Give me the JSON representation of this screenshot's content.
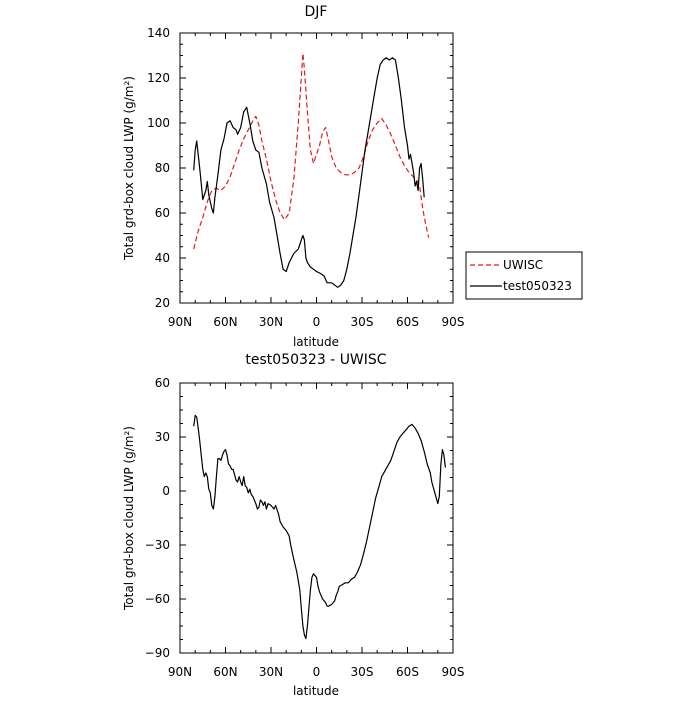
{
  "chart_data": [
    {
      "type": "line",
      "title": "DJF",
      "xlabel": "latitude",
      "ylabel": "Total grd-box cloud LWP (g/m²)",
      "xlim": [
        90,
        -90
      ],
      "ylim": [
        20,
        140
      ],
      "xticks": [
        {
          "value": 90,
          "label": "90N"
        },
        {
          "value": 60,
          "label": "60N"
        },
        {
          "value": 30,
          "label": "30N"
        },
        {
          "value": 0,
          "label": "0"
        },
        {
          "value": -30,
          "label": "30S"
        },
        {
          "value": -60,
          "label": "60S"
        },
        {
          "value": -90,
          "label": "90S"
        }
      ],
      "yticks": [
        20,
        40,
        60,
        80,
        100,
        120,
        140
      ],
      "legend_position": "right",
      "series": [
        {
          "name": "UWISC",
          "color": "#e41a1c",
          "dash": true,
          "points": [
            [
              81,
              44
            ],
            [
              78,
              52
            ],
            [
              75,
              58
            ],
            [
              72,
              65
            ],
            [
              69,
              70
            ],
            [
              66,
              71
            ],
            [
              63,
              70
            ],
            [
              60,
              72
            ],
            [
              57,
              76
            ],
            [
              54,
              82
            ],
            [
              51,
              88
            ],
            [
              48,
              93
            ],
            [
              45,
              97
            ],
            [
              42,
              101
            ],
            [
              40,
              103
            ],
            [
              38,
              99
            ],
            [
              36,
              92
            ],
            [
              33,
              84
            ],
            [
              30,
              74
            ],
            [
              27,
              66
            ],
            [
              24,
              60
            ],
            [
              21,
              57
            ],
            [
              18,
              60
            ],
            [
              15,
              75
            ],
            [
              12,
              100
            ],
            [
              10,
              120
            ],
            [
              9,
              131
            ],
            [
              8,
              124
            ],
            [
              6,
              105
            ],
            [
              4,
              88
            ],
            [
              2,
              82
            ],
            [
              0,
              86
            ],
            [
              -2,
              90
            ],
            [
              -4,
              96
            ],
            [
              -6,
              98
            ],
            [
              -8,
              92
            ],
            [
              -10,
              85
            ],
            [
              -13,
              80
            ],
            [
              -16,
              78
            ],
            [
              -19,
              77
            ],
            [
              -22,
              77
            ],
            [
              -25,
              78
            ],
            [
              -28,
              80
            ],
            [
              -31,
              85
            ],
            [
              -34,
              92
            ],
            [
              -37,
              97
            ],
            [
              -40,
              100
            ],
            [
              -43,
              102
            ],
            [
              -46,
              99
            ],
            [
              -49,
              95
            ],
            [
              -52,
              90
            ],
            [
              -55,
              85
            ],
            [
              -58,
              81
            ],
            [
              -61,
              78
            ],
            [
              -64,
              76
            ],
            [
              -66,
              75
            ],
            [
              -68,
              72
            ],
            [
              -70,
              62
            ],
            [
              -72,
              55
            ],
            [
              -74,
              49
            ]
          ]
        },
        {
          "name": "test050323",
          "color": "#000000",
          "dash": false,
          "points": [
            [
              81,
              79
            ],
            [
              80,
              88
            ],
            [
              79,
              92
            ],
            [
              77,
              80
            ],
            [
              75,
              66
            ],
            [
              73,
              70
            ],
            [
              72,
              74
            ],
            [
              71,
              68
            ],
            [
              69,
              62
            ],
            [
              68,
              60
            ],
            [
              67,
              67
            ],
            [
              65,
              77
            ],
            [
              63,
              88
            ],
            [
              61,
              93
            ],
            [
              59,
              100
            ],
            [
              57,
              101
            ],
            [
              55,
              98
            ],
            [
              53,
              97
            ],
            [
              52,
              95
            ],
            [
              50,
              98
            ],
            [
              48,
              105
            ],
            [
              46,
              107
            ],
            [
              44,
              100
            ],
            [
              42,
              92
            ],
            [
              40,
              88
            ],
            [
              38,
              87
            ],
            [
              36,
              80
            ],
            [
              33,
              73
            ],
            [
              31,
              65
            ],
            [
              28,
              58
            ],
            [
              26,
              50
            ],
            [
              24,
              42
            ],
            [
              22,
              35
            ],
            [
              20,
              34
            ],
            [
              18,
              38
            ],
            [
              15,
              42
            ],
            [
              12,
              44
            ],
            [
              10,
              48
            ],
            [
              9,
              50
            ],
            [
              8,
              48
            ],
            [
              7,
              40
            ],
            [
              6,
              38
            ],
            [
              4,
              36
            ],
            [
              2,
              35
            ],
            [
              0,
              34
            ],
            [
              -3,
              33
            ],
            [
              -5,
              32
            ],
            [
              -7,
              29
            ],
            [
              -10,
              29
            ],
            [
              -12,
              28
            ],
            [
              -14,
              27
            ],
            [
              -16,
              28
            ],
            [
              -18,
              30
            ],
            [
              -20,
              35
            ],
            [
              -22,
              42
            ],
            [
              -24,
              50
            ],
            [
              -26,
              58
            ],
            [
              -28,
              68
            ],
            [
              -30,
              78
            ],
            [
              -32,
              88
            ],
            [
              -34,
              96
            ],
            [
              -36,
              104
            ],
            [
              -38,
              112
            ],
            [
              -40,
              120
            ],
            [
              -42,
              126
            ],
            [
              -44,
              128
            ],
            [
              -46,
              129
            ],
            [
              -48,
              128
            ],
            [
              -50,
              129
            ],
            [
              -52,
              128
            ],
            [
              -54,
              120
            ],
            [
              -56,
              110
            ],
            [
              -58,
              98
            ],
            [
              -60,
              90
            ],
            [
              -61,
              84
            ],
            [
              -62,
              86
            ],
            [
              -64,
              78
            ],
            [
              -65,
              72
            ],
            [
              -66,
              74
            ],
            [
              -67,
              70
            ],
            [
              -68,
              80
            ],
            [
              -69,
              82
            ],
            [
              -70,
              75
            ],
            [
              -71,
              67
            ]
          ]
        }
      ]
    },
    {
      "type": "line",
      "title": "test050323 - UWISC",
      "xlabel": "latitude",
      "ylabel": "Total grd-box cloud LWP (g/m²)",
      "xlim": [
        90,
        -90
      ],
      "ylim": [
        -90,
        60
      ],
      "xticks": [
        {
          "value": 90,
          "label": "90N"
        },
        {
          "value": 60,
          "label": "60N"
        },
        {
          "value": 30,
          "label": "30N"
        },
        {
          "value": 0,
          "label": "0"
        },
        {
          "value": -30,
          "label": "30S"
        },
        {
          "value": -60,
          "label": "60S"
        },
        {
          "value": -90,
          "label": "90S"
        }
      ],
      "yticks": [
        -90,
        -60,
        -30,
        0,
        30,
        60
      ],
      "series": [
        {
          "color": "#000000",
          "dash": false,
          "points": [
            [
              81,
              36
            ],
            [
              80,
              42
            ],
            [
              79,
              41
            ],
            [
              78,
              35
            ],
            [
              77,
              28
            ],
            [
              76,
              20
            ],
            [
              75,
              12
            ],
            [
              74,
              8
            ],
            [
              73,
              10
            ],
            [
              72,
              8
            ],
            [
              71,
              1
            ],
            [
              70,
              -1
            ],
            [
              69,
              -8
            ],
            [
              68,
              -10
            ],
            [
              67,
              -3
            ],
            [
              66,
              8
            ],
            [
              65,
              18
            ],
            [
              64,
              18
            ],
            [
              63,
              17
            ],
            [
              62,
              20
            ],
            [
              61,
              22
            ],
            [
              60,
              23
            ],
            [
              59,
              20
            ],
            [
              58,
              15
            ],
            [
              57,
              14
            ],
            [
              56,
              12
            ],
            [
              55,
              12
            ],
            [
              54,
              9
            ],
            [
              53,
              6
            ],
            [
              52,
              5
            ],
            [
              51,
              8
            ],
            [
              50,
              5
            ],
            [
              49,
              3
            ],
            [
              48,
              8
            ],
            [
              47,
              3
            ],
            [
              46,
              2
            ],
            [
              45,
              -1
            ],
            [
              44,
              1
            ],
            [
              43,
              -2
            ],
            [
              42,
              -3
            ],
            [
              40,
              -7
            ],
            [
              39,
              -10
            ],
            [
              38,
              -9
            ],
            [
              37,
              -5
            ],
            [
              36,
              -6
            ],
            [
              35,
              -8
            ],
            [
              34,
              -6
            ],
            [
              33,
              -10
            ],
            [
              32,
              -7
            ],
            [
              30,
              -8
            ],
            [
              28,
              -10
            ],
            [
              27,
              -8
            ],
            [
              25,
              -13
            ],
            [
              24,
              -17
            ],
            [
              22,
              -20
            ],
            [
              20,
              -22
            ],
            [
              18,
              -25
            ],
            [
              17,
              -30
            ],
            [
              15,
              -38
            ],
            [
              13,
              -45
            ],
            [
              11,
              -55
            ],
            [
              10,
              -65
            ],
            [
              9,
              -75
            ],
            [
              8,
              -80
            ],
            [
              7,
              -82
            ],
            [
              6,
              -75
            ],
            [
              5,
              -65
            ],
            [
              4,
              -55
            ],
            [
              3,
              -48
            ],
            [
              2,
              -46
            ],
            [
              0,
              -48
            ],
            [
              -1,
              -53
            ],
            [
              -2,
              -56
            ],
            [
              -4,
              -60
            ],
            [
              -6,
              -62
            ],
            [
              -7,
              -64
            ],
            [
              -8,
              -64
            ],
            [
              -10,
              -63
            ],
            [
              -12,
              -61
            ],
            [
              -13,
              -58
            ],
            [
              -14,
              -56
            ],
            [
              -15,
              -53
            ],
            [
              -17,
              -52
            ],
            [
              -19,
              -51
            ],
            [
              -21,
              -51
            ],
            [
              -23,
              -49
            ],
            [
              -25,
              -48
            ],
            [
              -27,
              -45
            ],
            [
              -29,
              -41
            ],
            [
              -31,
              -35
            ],
            [
              -33,
              -28
            ],
            [
              -35,
              -20
            ],
            [
              -37,
              -12
            ],
            [
              -39,
              -4
            ],
            [
              -41,
              2
            ],
            [
              -43,
              8
            ],
            [
              -45,
              11
            ],
            [
              -47,
              14
            ],
            [
              -49,
              17
            ],
            [
              -51,
              22
            ],
            [
              -53,
              27
            ],
            [
              -55,
              30
            ],
            [
              -57,
              32
            ],
            [
              -59,
              34
            ],
            [
              -61,
              36
            ],
            [
              -63,
              37
            ],
            [
              -65,
              35
            ],
            [
              -67,
              32
            ],
            [
              -69,
              28
            ],
            [
              -71,
              22
            ],
            [
              -73,
              15
            ],
            [
              -75,
              10
            ],
            [
              -76,
              5
            ],
            [
              -77,
              2
            ],
            [
              -78,
              -1
            ],
            [
              -79,
              -4
            ],
            [
              -80,
              -7
            ],
            [
              -81,
              -3
            ],
            [
              -82,
              15
            ],
            [
              -83,
              23
            ],
            [
              -84,
              20
            ],
            [
              -85,
              13
            ]
          ]
        }
      ]
    }
  ]
}
